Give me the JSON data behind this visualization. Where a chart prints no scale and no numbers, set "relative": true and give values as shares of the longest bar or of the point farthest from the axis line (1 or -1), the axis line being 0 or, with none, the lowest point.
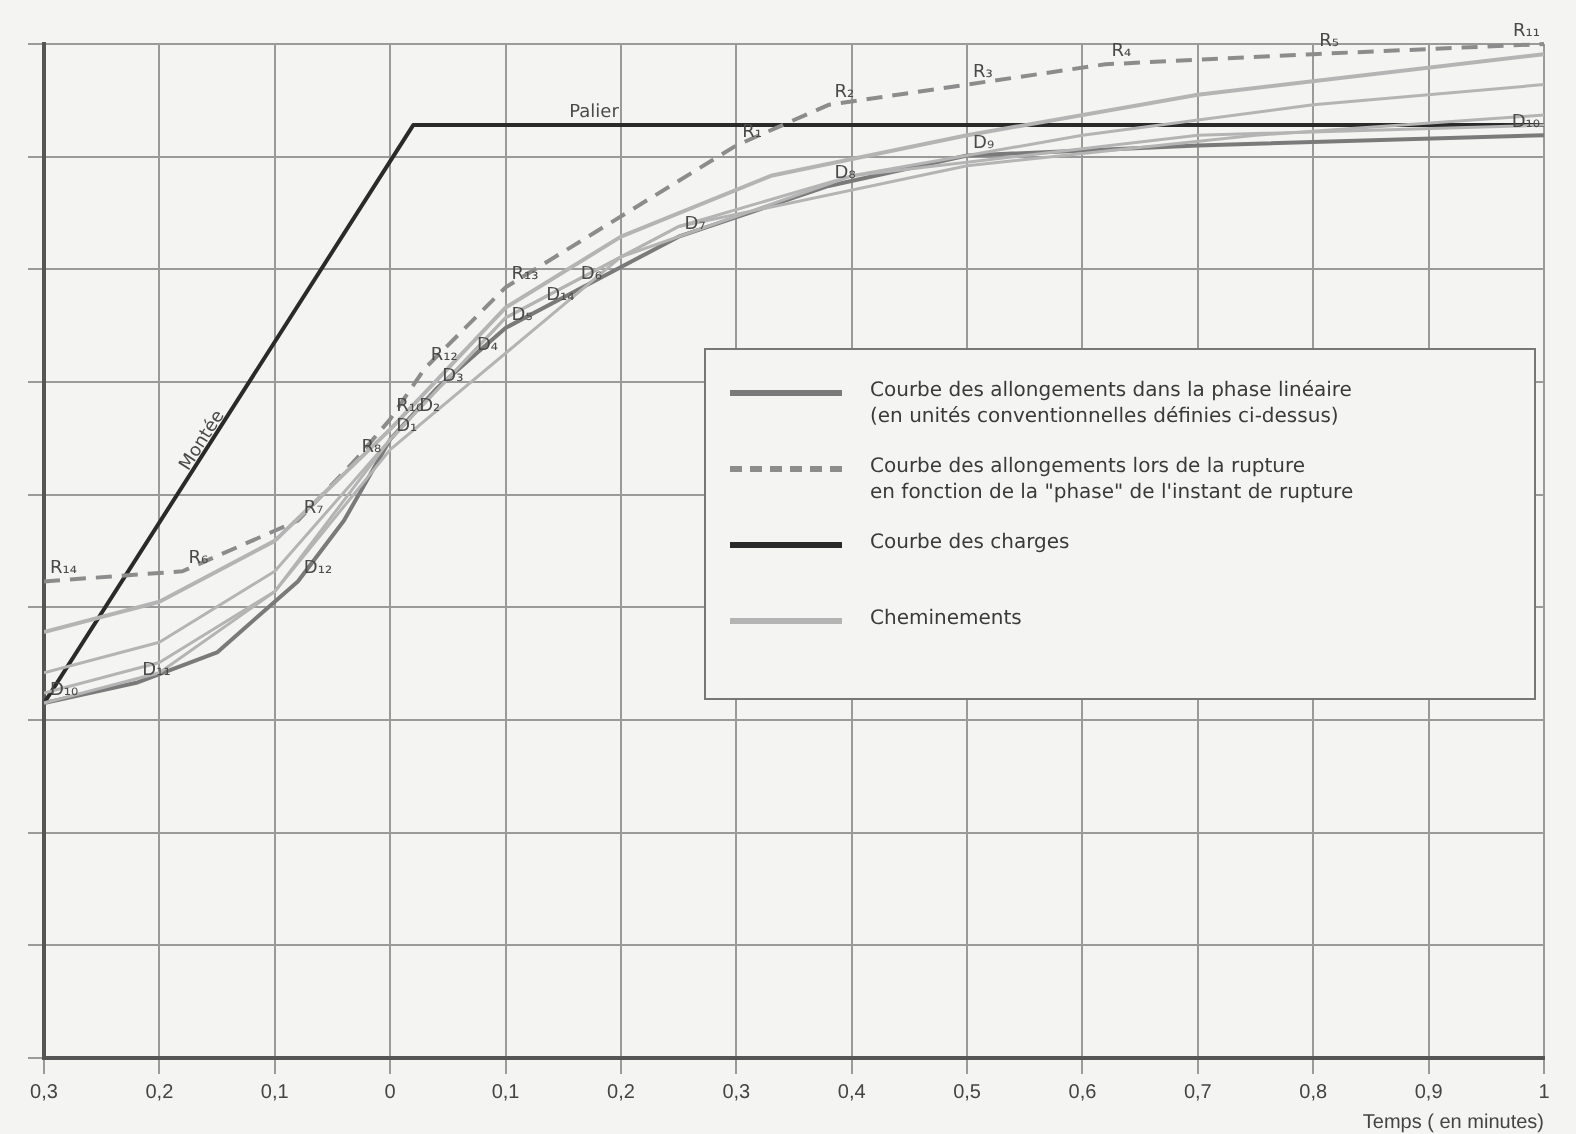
{
  "chart_data": {
    "type": "line",
    "relative": true,
    "xlabel": "Temps ( en minutes)",
    "xlim": [
      -0.3,
      1
    ],
    "xticks": [
      {
        "value": -0.3,
        "label": "0,3"
      },
      {
        "value": -0.2,
        "label": "0,2"
      },
      {
        "value": -0.1,
        "label": "0,1"
      },
      0,
      {
        "value": 0.1,
        "label": "0,1"
      },
      {
        "value": 0.2,
        "label": "0,2"
      },
      {
        "value": 0.3,
        "label": "0,3"
      },
      {
        "value": 0.4,
        "label": "0,4"
      },
      {
        "value": 0.5,
        "label": "0,5"
      },
      {
        "value": 0.6,
        "label": "0,6"
      },
      {
        "value": 0.7,
        "label": "0,7"
      },
      {
        "value": 0.8,
        "label": "0,8"
      },
      {
        "value": 0.9,
        "label": "0,9"
      },
      1
    ],
    "grid": true,
    "legend": "right",
    "marker": "none",
    "series": [
      {
        "name": "Cheminements",
        "color": "#b4b4b4",
        "x": [
          -0.3,
          -0.2,
          -0.1,
          0,
          0.1,
          0.2,
          0.33,
          0.5,
          0.7,
          1
        ],
        "values": [
          0.42,
          0.45,
          0.51,
          0.62,
          0.74,
          0.81,
          0.87,
          0.91,
          0.95,
          0.99
        ]
      },
      {
        "color": "#b4b4b4",
        "x": [
          -0.3,
          -0.2,
          -0.1,
          0,
          0.1,
          0.25,
          0.4,
          0.6,
          0.8,
          1
        ],
        "values": [
          0.38,
          0.41,
          0.48,
          0.61,
          0.73,
          0.82,
          0.87,
          0.91,
          0.94,
          0.96
        ]
      },
      {
        "color": "#b4b4b4",
        "x": [
          -0.3,
          -0.2,
          -0.1,
          0,
          0.1,
          0.25,
          0.5,
          0.75,
          1
        ],
        "values": [
          0.36,
          0.39,
          0.46,
          0.61,
          0.73,
          0.82,
          0.88,
          0.91,
          0.93
        ]
      },
      {
        "color": "#b4b4b4",
        "x": [
          -0.3,
          -0.2,
          -0.1,
          0,
          0.2,
          0.4,
          0.7,
          1
        ],
        "values": [
          0.35,
          0.38,
          0.46,
          0.6,
          0.79,
          0.87,
          0.91,
          0.92
        ]
      },
      {
        "name": "Courbe des allongements dans la phase linéaire\n(en unités conventionnelles définies ci-dessus)",
        "color": "#7a7a7a",
        "x": [
          -0.3,
          -0.22,
          -0.15,
          -0.08,
          -0.04,
          0,
          0.04,
          0.07,
          0.1,
          0.15,
          0.25,
          0.38,
          0.5,
          0.7,
          1
        ],
        "values": [
          0.35,
          0.37,
          0.4,
          0.47,
          0.53,
          0.61,
          0.66,
          0.69,
          0.72,
          0.75,
          0.81,
          0.86,
          0.89,
          0.9,
          0.91
        ]
      },
      {
        "name": "Courbe des allongements lors de la rupture\nen fonction de la \"phase\" de l'instant de rupture",
        "color": "#8c8c8c",
        "line_style": "dashed",
        "x": [
          -0.3,
          -0.18,
          -0.08,
          -0.03,
          0,
          0.03,
          0.1,
          0.3,
          0.38,
          0.5,
          0.62,
          0.8,
          1
        ],
        "values": [
          0.47,
          0.48,
          0.53,
          0.59,
          0.63,
          0.68,
          0.76,
          0.9,
          0.94,
          0.96,
          0.98,
          0.99,
          1
        ]
      },
      {
        "name": "Courbe des charges",
        "color": "#2a2a2a",
        "x": [
          -0.3,
          0.02,
          1
        ],
        "values": [
          0.35,
          0.92,
          0.92
        ]
      }
    ],
    "annotations": [
      {
        "text": "Palier",
        "x": 0.15,
        "y": 0.92
      },
      "Montée",
      {
        "text": "R₁₄",
        "x": -0.3,
        "y": 0.47
      },
      {
        "text": "R₆",
        "x": -0.18,
        "y": 0.48
      },
      {
        "text": "R₇",
        "x": -0.08,
        "y": 0.53
      },
      {
        "text": "R₈",
        "x": -0.03,
        "y": 0.59
      },
      {
        "text": "R₁₀",
        "x": 0,
        "y": 0.63
      },
      {
        "text": "R₁₂",
        "x": 0.03,
        "y": 0.68
      },
      {
        "text": "R₁₃",
        "x": 0.1,
        "y": 0.76
      },
      {
        "text": "R₁",
        "x": 0.3,
        "y": 0.9
      },
      {
        "text": "R₂",
        "x": 0.38,
        "y": 0.94
      },
      {
        "text": "R₃",
        "x": 0.5,
        "y": 0.96
      },
      {
        "text": "R₄",
        "x": 0.62,
        "y": 0.98
      },
      {
        "text": "R₅",
        "x": 0.8,
        "y": 0.99
      },
      {
        "text": "R₁₁",
        "x": 1,
        "y": 1
      },
      {
        "text": "D₁₀",
        "x": -0.3,
        "y": 0.35
      },
      {
        "text": "D₁₁",
        "x": -0.22,
        "y": 0.37
      },
      {
        "text": "D₁₂",
        "x": -0.08,
        "y": 0.47
      },
      {
        "text": "D₁",
        "x": 0,
        "y": 0.61
      },
      {
        "text": "D₂",
        "x": 0.02,
        "y": 0.63
      },
      {
        "text": "D₃",
        "x": 0.04,
        "y": 0.66
      },
      {
        "text": "D₄",
        "x": 0.07,
        "y": 0.69
      },
      {
        "text": "D₅",
        "x": 0.1,
        "y": 0.72
      },
      {
        "text": "D₁₄",
        "x": 0.13,
        "y": 0.74
      },
      {
        "text": "D₆",
        "x": 0.16,
        "y": 0.76
      },
      {
        "text": "D₇",
        "x": 0.25,
        "y": 0.81
      },
      {
        "text": "D₈",
        "x": 0.38,
        "y": 0.86
      },
      {
        "text": "D₉",
        "x": 0.5,
        "y": 0.89
      },
      {
        "text": "D₁₀",
        "x": 1,
        "y": 0.91
      }
    ]
  }
}
